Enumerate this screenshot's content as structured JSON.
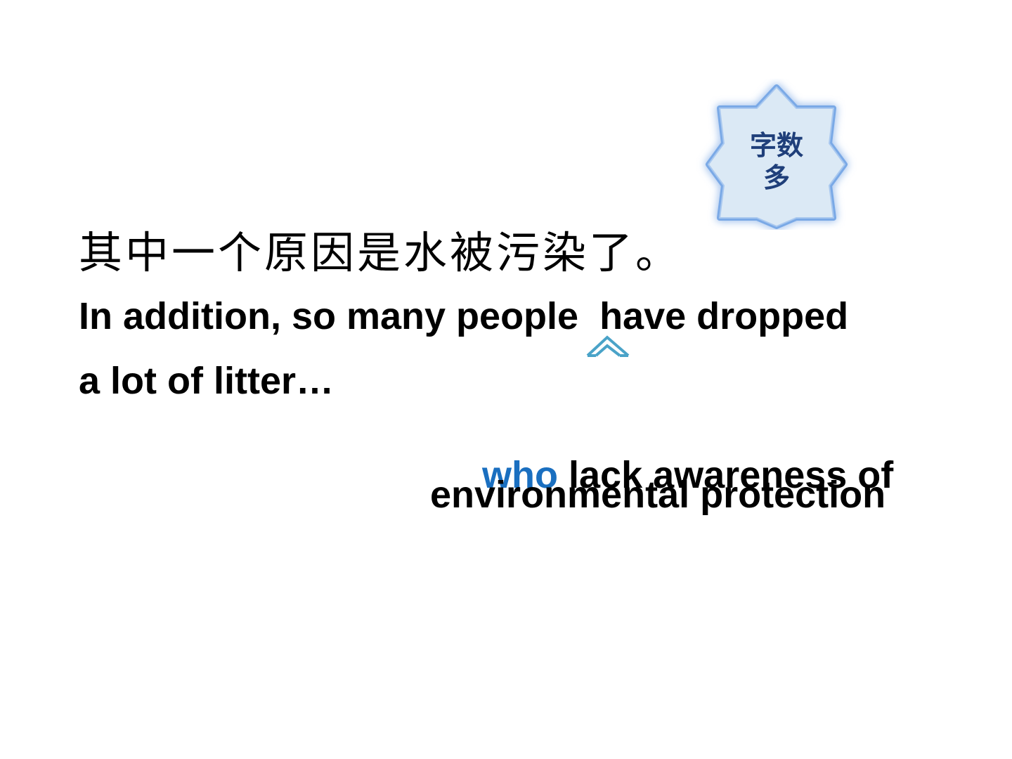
{
  "badge": {
    "line1": "字数",
    "line2": "多",
    "icon": "star-badge-icon",
    "fill_color": "#dbe9f5",
    "glow_color": "#7aa9e6",
    "text_color": "#1f3f7a"
  },
  "chinese_sentence": "其中一个原因是水被污染了。",
  "english": {
    "line1": "In addition, so many people  have dropped",
    "line2": "a lot of litter…",
    "clause_relative": "who",
    "clause_rest": " lack awareness of",
    "line4": "environmental protection",
    "highlight_color": "#1a6fc0"
  },
  "insert_marker": {
    "icon": "insert-caret-icon",
    "color": "#4aa3c8"
  }
}
